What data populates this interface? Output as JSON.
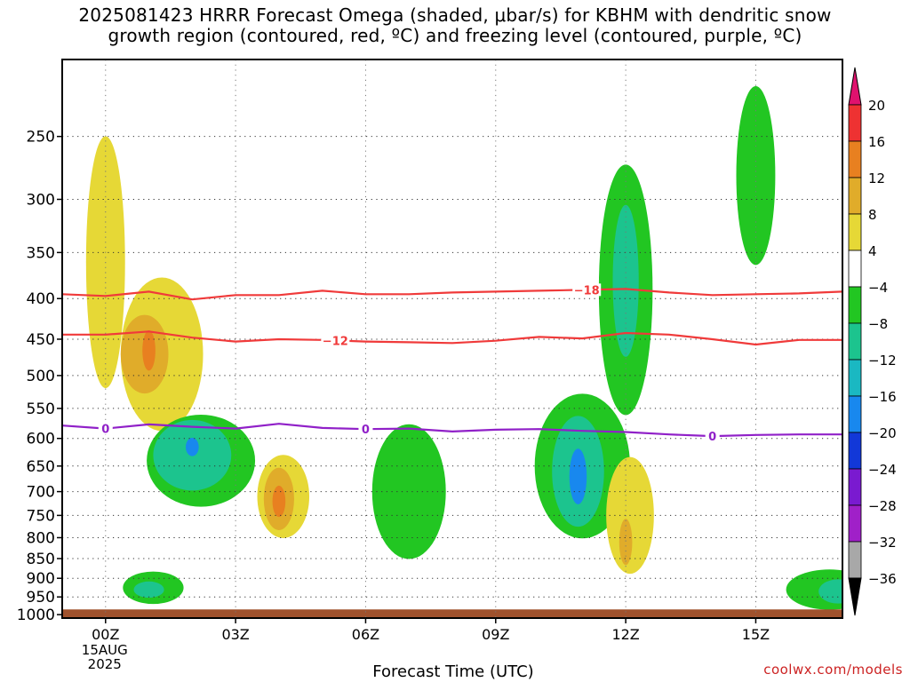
{
  "chart_data": {
    "type": "heatmap",
    "title_line1": "2025081423 HRRR Forecast Omega (shaded, μbar/s) for KBHM with dendritic snow",
    "title_line2": "growth region (contoured, red, ºC) and freezing level (contoured, purple, ºC)",
    "xlabel": "Forecast Time (UTC)",
    "x_ticks": [
      "00Z",
      "03Z",
      "06Z",
      "09Z",
      "12Z",
      "15Z"
    ],
    "x_tick_hours": [
      0,
      3,
      6,
      9,
      12,
      15
    ],
    "x_date_label": [
      "15AUG",
      "2025"
    ],
    "xlim_hours": [
      -1,
      17
    ],
    "y_ticks": [
      250,
      300,
      350,
      400,
      450,
      500,
      550,
      600,
      650,
      700,
      750,
      800,
      850,
      900,
      950,
      1000
    ],
    "ylim_hpa": [
      200,
      1010
    ],
    "y_scale": "log pressure (inverted)",
    "grid": true,
    "colorbar": {
      "ticks": [
        "20",
        "16",
        "12",
        "8",
        "4",
        "−4",
        "−8",
        "−12",
        "−16",
        "−20",
        "−24",
        "−28",
        "−32",
        "−36"
      ],
      "colors": [
        "#e0126e",
        "#ee3232",
        "#e88020",
        "#e0ac2a",
        "#e6d836",
        "#ffffff",
        "#22c622",
        "#1cc48e",
        "#1ab8c2",
        "#1888ee",
        "#1238d8",
        "#7a1ad0",
        "#a020c8",
        "#a8a8a8",
        "#000000"
      ]
    },
    "contours": [
      {
        "label": "−18",
        "color": "#f03a3a",
        "label_hour": 11.1,
        "points": [
          [
            -1,
            395
          ],
          [
            0,
            397
          ],
          [
            1,
            392
          ],
          [
            2,
            401
          ],
          [
            3,
            396
          ],
          [
            4,
            396
          ],
          [
            5,
            391
          ],
          [
            6,
            395
          ],
          [
            7,
            395
          ],
          [
            8,
            393
          ],
          [
            9,
            392
          ],
          [
            10,
            391
          ],
          [
            11,
            390
          ],
          [
            12,
            389
          ],
          [
            13,
            393
          ],
          [
            14,
            396
          ],
          [
            15,
            395
          ],
          [
            16,
            394
          ],
          [
            17,
            392
          ]
        ]
      },
      {
        "label": "−12",
        "color": "#f03a3a",
        "label_hour": 5.3,
        "points": [
          [
            -1,
            444
          ],
          [
            0,
            444
          ],
          [
            1,
            440
          ],
          [
            2,
            448
          ],
          [
            3,
            453
          ],
          [
            4,
            450
          ],
          [
            5,
            451
          ],
          [
            6,
            453
          ],
          [
            7,
            454
          ],
          [
            8,
            455
          ],
          [
            9,
            452
          ],
          [
            10,
            447
          ],
          [
            11,
            449
          ],
          [
            12,
            442
          ],
          [
            13,
            444
          ],
          [
            14,
            450
          ],
          [
            15,
            457
          ],
          [
            16,
            451
          ],
          [
            17,
            451
          ]
        ]
      },
      {
        "label": "0",
        "color": "#9020c8",
        "label_hours": [
          0,
          6,
          14
        ],
        "points": [
          [
            -1,
            578
          ],
          [
            0,
            583
          ],
          [
            1,
            576
          ],
          [
            2,
            580
          ],
          [
            3,
            583
          ],
          [
            4,
            575
          ],
          [
            5,
            582
          ],
          [
            6,
            584
          ],
          [
            7,
            583
          ],
          [
            8,
            588
          ],
          [
            9,
            585
          ],
          [
            10,
            584
          ],
          [
            11,
            587
          ],
          [
            12,
            589
          ],
          [
            13,
            593
          ],
          [
            14,
            596
          ],
          [
            15,
            594
          ],
          [
            16,
            593
          ],
          [
            17,
            593
          ]
        ]
      }
    ],
    "omega_regions": [
      {
        "type": "ellipse",
        "hour": 0,
        "hpa": 360,
        "rx": 0.45,
        "ry": 13,
        "value": 4
      },
      {
        "type": "ellipse",
        "hour": 1.3,
        "hpa": 470,
        "rx": 0.95,
        "ry": 10,
        "value": 4
      },
      {
        "type": "ellipse",
        "hour": 0.9,
        "hpa": 470,
        "rx": 0.55,
        "ry": 5,
        "value": 8
      },
      {
        "type": "ellipse",
        "hour": 1.0,
        "hpa": 465,
        "rx": 0.15,
        "ry": 2.5,
        "value": 12
      },
      {
        "type": "ellipse",
        "hour": 2.2,
        "hpa": 640,
        "rx": 1.25,
        "ry": 8,
        "value": -8
      },
      {
        "type": "ellipse",
        "hour": 2.0,
        "hpa": 630,
        "rx": 0.9,
        "ry": 6,
        "value": -12
      },
      {
        "type": "ellipse",
        "hour": 2.0,
        "hpa": 615,
        "rx": 0.15,
        "ry": 1.5,
        "value": -16
      },
      {
        "type": "ellipse",
        "hour": 4.1,
        "hpa": 710,
        "rx": 0.6,
        "ry": 8,
        "value": 4
      },
      {
        "type": "ellipse",
        "hour": 4.0,
        "hpa": 715,
        "rx": 0.35,
        "ry": 6,
        "value": 8
      },
      {
        "type": "ellipse",
        "hour": 4.0,
        "hpa": 720,
        "rx": 0.15,
        "ry": 3,
        "value": 12
      },
      {
        "type": "ellipse",
        "hour": 7.0,
        "hpa": 700,
        "rx": 0.85,
        "ry": 13,
        "value": -8
      },
      {
        "type": "ellipse",
        "hour": 11.0,
        "hpa": 650,
        "rx": 1.1,
        "ry": 13,
        "value": -8
      },
      {
        "type": "ellipse",
        "hour": 10.9,
        "hpa": 660,
        "rx": 0.6,
        "ry": 10,
        "value": -12
      },
      {
        "type": "ellipse",
        "hour": 10.9,
        "hpa": 670,
        "rx": 0.2,
        "ry": 5,
        "value": -16
      },
      {
        "type": "ellipse",
        "hour": 12.0,
        "hpa": 390,
        "rx": 0.62,
        "ry": 14,
        "value": -8
      },
      {
        "type": "ellipse",
        "hour": 12.0,
        "hpa": 380,
        "rx": 0.3,
        "ry": 8,
        "value": -12
      },
      {
        "type": "ellipse",
        "hour": 12.1,
        "hpa": 750,
        "rx": 0.55,
        "ry": 12,
        "value": 4
      },
      {
        "type": "ellipse",
        "hour": 12.0,
        "hpa": 810,
        "rx": 0.15,
        "ry": 5,
        "value": 8
      },
      {
        "type": "ellipse",
        "hour": 15.0,
        "hpa": 280,
        "rx": 0.45,
        "ry": 7,
        "value": -8
      },
      {
        "type": "ellipse",
        "hour": 1.1,
        "hpa": 925,
        "rx": 0.7,
        "ry": 4,
        "value": -8
      },
      {
        "type": "ellipse",
        "hour": 1.0,
        "hpa": 930,
        "rx": 0.35,
        "ry": 2,
        "value": -12
      },
      {
        "type": "ellipse",
        "hour": 16.7,
        "hpa": 930,
        "rx": 1.0,
        "ry": 5,
        "value": -8
      },
      {
        "type": "ellipse",
        "hour": 16.9,
        "hpa": 935,
        "rx": 0.45,
        "ry": 3,
        "value": -12
      }
    ],
    "terrain_hpa": 985,
    "terrain_color": "#a0522d",
    "watermark": "coolwx.com/models"
  }
}
